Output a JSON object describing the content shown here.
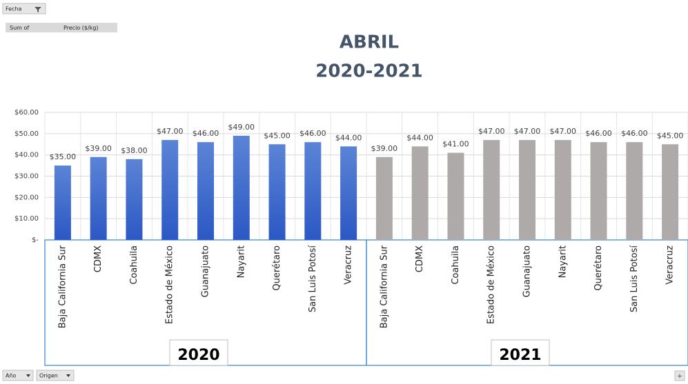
{
  "chart_data": {
    "type": "bar",
    "title": "ABRIL",
    "subtitle": "2020-2021",
    "ylim": [
      0,
      60
    ],
    "yticks": [
      {
        "value": 0,
        "label": "$-"
      },
      {
        "value": 10,
        "label": "$10.00"
      },
      {
        "value": 20,
        "label": "$20.00"
      },
      {
        "value": 30,
        "label": "$30.00"
      },
      {
        "value": 40,
        "label": "$40.00"
      },
      {
        "value": 50,
        "label": "$50.00"
      },
      {
        "value": 60,
        "label": "$60.00"
      }
    ],
    "grid": true,
    "groups": [
      {
        "name": "2020",
        "color": "#3b66c9",
        "categories": [
          "Baja California Sur",
          "CDMX",
          "Coahuila",
          "Estado de México",
          "Guanajuato",
          "Nayarit",
          "Querétaro",
          "San Luis Potosí",
          "Veracruz"
        ],
        "values": [
          35,
          39,
          38,
          47,
          46,
          49,
          45,
          46,
          44
        ],
        "value_labels": [
          "$35.00",
          "$39.00",
          "$38.00",
          "$47.00",
          "$46.00",
          "$49.00",
          "$45.00",
          "$46.00",
          "$44.00"
        ]
      },
      {
        "name": "2021",
        "color": "#aeaaaa",
        "categories": [
          "Baja California Sur",
          "CDMX",
          "Coahuila",
          "Estado de México",
          "Guanajuato",
          "Nayarit",
          "Querétaro",
          "San Luis Potosí",
          "Veracruz"
        ],
        "values": [
          39,
          44,
          41,
          47,
          47,
          47,
          46,
          46,
          45
        ],
        "value_labels": [
          "$39.00",
          "$44.00",
          "$41.00",
          "$47.00",
          "$47.00",
          "$47.00",
          "$46.00",
          "$46.00",
          "$45.00"
        ]
      }
    ]
  },
  "ui": {
    "filter_field": "Fecha",
    "value_prefix": "Sum of",
    "value_field": "Precio ($/kg)",
    "axis_fields": [
      "Año",
      "Origen"
    ],
    "expand": "+"
  }
}
